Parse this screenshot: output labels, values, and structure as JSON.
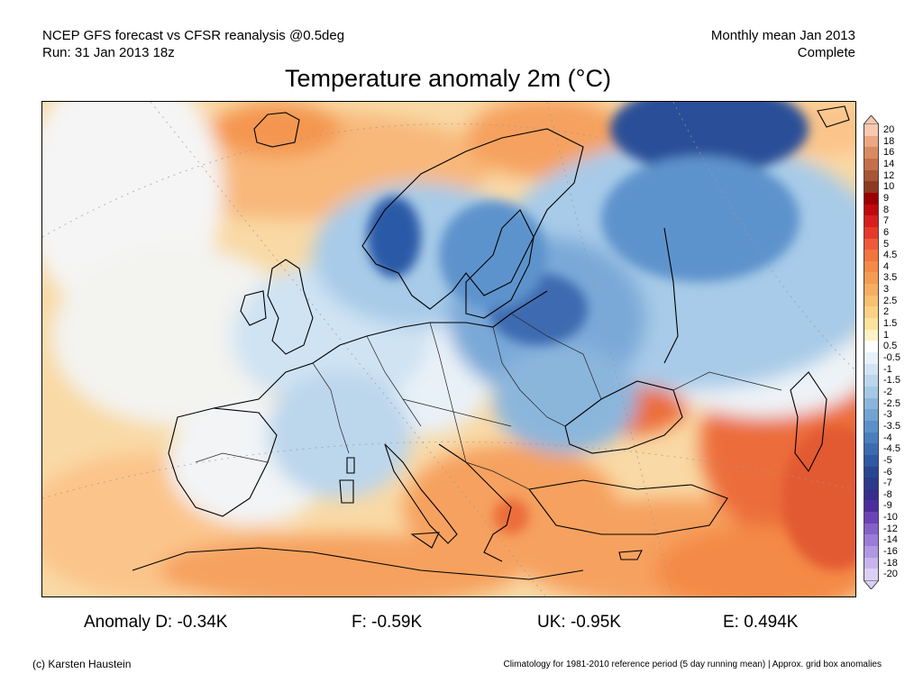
{
  "header": {
    "line1_left": "NCEP GFS forecast vs CFSR reanalysis @0.5deg",
    "line2_left": "Run: 31 Jan 2013 18z",
    "line1_right": "Monthly mean Jan 2013",
    "line2_right": "Complete"
  },
  "title": "Temperature anomaly 2m (°C)",
  "map": {
    "region": "Europe",
    "variable": "2m temperature anomaly",
    "colors": {
      "ocean_warm": "#f9d9a5",
      "warm_light": "#fbc48a",
      "warm_mid": "#f6a15e",
      "warm_strong": "#ec6d3a",
      "neutral": "#f5f5f5",
      "cool_light": "#d6e7f5",
      "cool_mid": "#a7cbe8",
      "cool_strong": "#5d93cc",
      "cold_deep": "#2b5aa7",
      "coastline": "#000000"
    }
  },
  "colorbar": {
    "labels": [
      "20",
      "18",
      "16",
      "14",
      "12",
      "10",
      "9",
      "8",
      "7",
      "6",
      "5",
      "4.5",
      "4",
      "3.5",
      "3",
      "2.5",
      "2",
      "1.5",
      "1",
      "0.5",
      "-0.5",
      "-1",
      "-1.5",
      "-2",
      "-2.5",
      "-3",
      "-3.5",
      "-4",
      "-4.5",
      "-5",
      "-6",
      "-7",
      "-8",
      "-9",
      "-10",
      "-12",
      "-14",
      "-16",
      "-18",
      "-20"
    ],
    "colors": [
      "#f7c9b0",
      "#eba883",
      "#d98b62",
      "#c46f49",
      "#a85536",
      "#8c3a22",
      "#9c0000",
      "#be0a0a",
      "#d81e1e",
      "#e53a2a",
      "#ef5a3a",
      "#f2743f",
      "#f48a46",
      "#f59c52",
      "#f7ae60",
      "#f8c070",
      "#fad283",
      "#fbe39b",
      "#fdf2c5",
      "#ffffff",
      "#e8f1fa",
      "#d2e4f3",
      "#bcd6ec",
      "#a5c8e5",
      "#8bb6dc",
      "#72a4d3",
      "#5b91c8",
      "#4a7ebd",
      "#3d6bb0",
      "#3158a2",
      "#2a4693",
      "#2b3a8a",
      "#352e8c",
      "#4a2f9c",
      "#6a44b5",
      "#8560c8",
      "#9c7bd6",
      "#b297e2",
      "#c7b4ec",
      "#dbd0f4"
    ]
  },
  "stats": {
    "d": "Anomaly D: -0.34K",
    "f": "F: -0.59K",
    "uk": "UK: -0.95K",
    "e": "E: 0.494K"
  },
  "footer": {
    "left": "(c) Karsten Haustein",
    "right": "Climatology for 1981-2010 reference period (5 day running mean) | Approx. grid box anomalies"
  }
}
